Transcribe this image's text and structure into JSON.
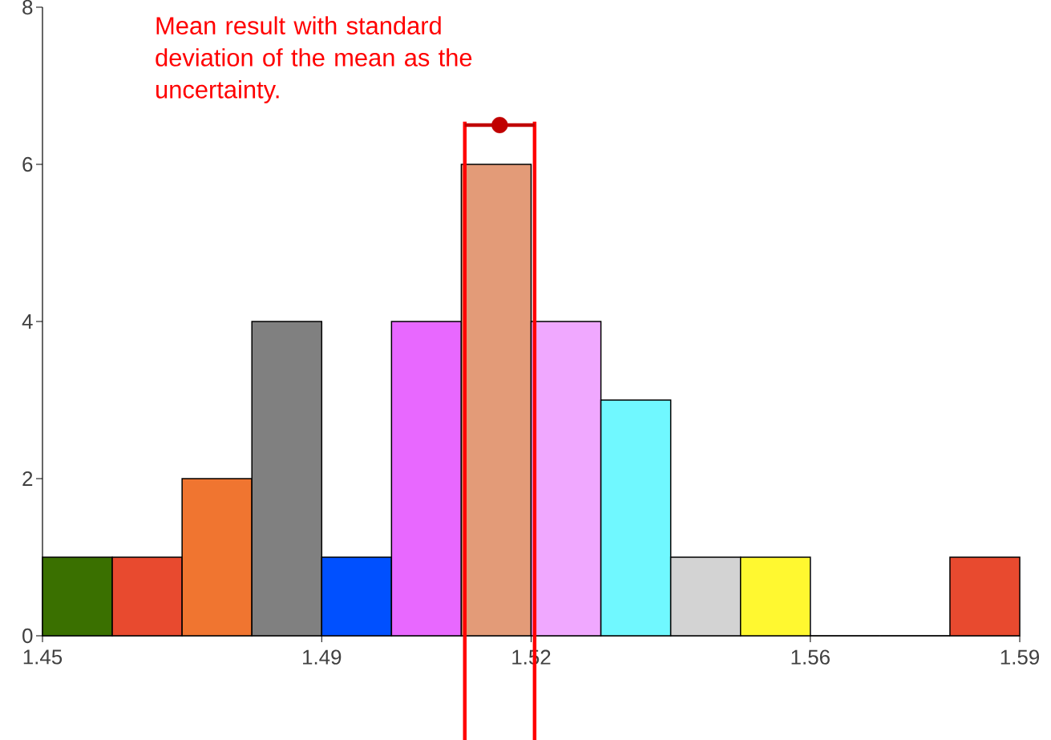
{
  "chart_data": {
    "type": "histogram",
    "bins": [
      1.45,
      1.46,
      1.47,
      1.48,
      1.49,
      1.5,
      1.51,
      1.52,
      1.53,
      1.54,
      1.55,
      1.56,
      1.57,
      1.58,
      1.59
    ],
    "values": [
      1,
      1,
      2,
      4,
      1,
      4,
      6,
      4,
      3,
      1,
      1,
      0,
      0,
      1
    ],
    "colors": [
      "#3a7000",
      "#e84a2f",
      "#f07530",
      "#808080",
      "#0050ff",
      "#e868ff",
      "#e39b78",
      "#f0a8ff",
      "#70f8ff",
      "#d3d3d3",
      "#fff830",
      null,
      null,
      "#e84a2f"
    ],
    "series": [
      {
        "type": "scatter",
        "x": [
          1.5155
        ],
        "values": [
          6.5
        ],
        "xerrors": [
          0.005
        ],
        "color": "#c00000"
      }
    ],
    "ref_lines": [
      {
        "axis": "x",
        "value": 1.5105,
        "color": "#ff0000"
      },
      {
        "axis": "x",
        "value": 1.5205,
        "color": "#ff0000"
      }
    ],
    "annotations": [
      "Mean result with standard deviation of the mean as the uncertainty."
    ],
    "xlim": [
      1.45,
      1.59
    ],
    "ylim": [
      0,
      8
    ],
    "xticks": [
      1.45,
      1.49,
      1.52,
      1.56,
      1.59
    ],
    "yticks": [
      0,
      2,
      4,
      6,
      8
    ],
    "grid": false
  }
}
